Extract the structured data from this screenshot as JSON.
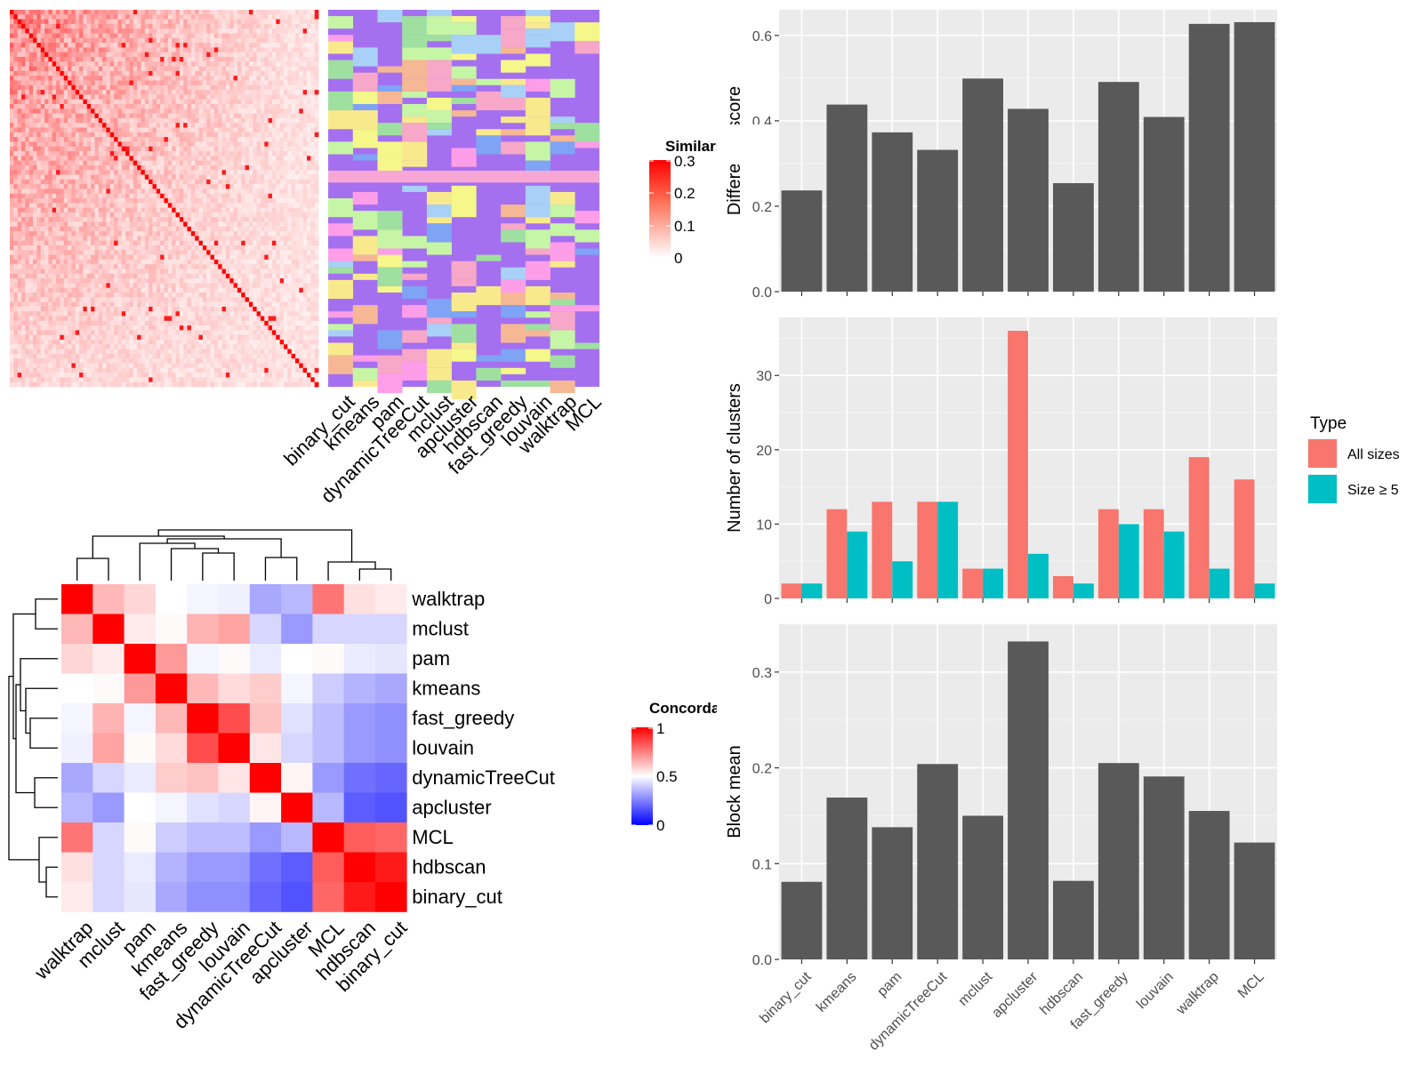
{
  "methods_order_bars": [
    "binary_cut",
    "kmeans",
    "pam",
    "dynamicTreeCut",
    "mclust",
    "apcluster",
    "hdbscan",
    "fast_greedy",
    "louvain",
    "walktrap",
    "MCL"
  ],
  "similarity_heatmap": {
    "legend_title": "Similarity",
    "legend_ticks": [
      "0",
      "0.1",
      "0.2",
      "0.3"
    ],
    "column_labels": [
      "binary_cut",
      "kmeans",
      "pam",
      "dynamicTreeCut",
      "mclust",
      "apcluster",
      "hdbscan",
      "fast_greedy",
      "louvain",
      "walktrap",
      "MCL"
    ]
  },
  "concordance_heatmap": {
    "legend_title": "Concordance",
    "legend_ticks": [
      "0",
      "0.5",
      "1"
    ],
    "labels": [
      "walktrap",
      "mclust",
      "pam",
      "kmeans",
      "fast_greedy",
      "louvain",
      "dynamicTreeCut",
      "apcluster",
      "MCL",
      "hdbscan",
      "binary_cut"
    ],
    "matrix": [
      [
        1.0,
        0.64,
        0.58,
        0.5,
        0.48,
        0.47,
        0.33,
        0.36,
        0.77,
        0.56,
        0.54
      ],
      [
        0.64,
        1.0,
        0.54,
        0.51,
        0.65,
        0.68,
        0.42,
        0.3,
        0.42,
        0.42,
        0.42
      ],
      [
        0.58,
        0.54,
        1.0,
        0.7,
        0.48,
        0.51,
        0.46,
        0.5,
        0.51,
        0.46,
        0.45
      ],
      [
        0.5,
        0.51,
        0.7,
        1.0,
        0.64,
        0.57,
        0.6,
        0.48,
        0.4,
        0.35,
        0.33
      ],
      [
        0.48,
        0.65,
        0.48,
        0.64,
        1.0,
        0.85,
        0.62,
        0.44,
        0.37,
        0.3,
        0.28
      ],
      [
        0.47,
        0.68,
        0.51,
        0.57,
        0.85,
        1.0,
        0.55,
        0.42,
        0.37,
        0.3,
        0.28
      ],
      [
        0.33,
        0.42,
        0.46,
        0.6,
        0.62,
        0.55,
        1.0,
        0.52,
        0.3,
        0.22,
        0.2
      ],
      [
        0.36,
        0.3,
        0.5,
        0.48,
        0.44,
        0.42,
        0.52,
        1.0,
        0.36,
        0.18,
        0.16
      ],
      [
        0.77,
        0.42,
        0.51,
        0.4,
        0.37,
        0.37,
        0.3,
        0.36,
        1.0,
        0.82,
        0.8
      ],
      [
        0.56,
        0.42,
        0.46,
        0.35,
        0.3,
        0.3,
        0.22,
        0.18,
        0.82,
        1.0,
        0.95
      ],
      [
        0.54,
        0.42,
        0.45,
        0.33,
        0.28,
        0.28,
        0.2,
        0.16,
        0.8,
        0.95,
        1.0
      ]
    ]
  },
  "chart_data": [
    {
      "type": "bar",
      "categories": [
        "binary_cut",
        "kmeans",
        "pam",
        "dynamicTreeCut",
        "mclust",
        "apcluster",
        "hdbscan",
        "fast_greedy",
        "louvain",
        "walktrap",
        "MCL"
      ],
      "values": [
        0.237,
        0.438,
        0.373,
        0.332,
        0.499,
        0.428,
        0.254,
        0.491,
        0.409,
        0.627,
        0.631
      ],
      "title": "",
      "xlabel": "",
      "ylabel": "Difference score",
      "ylim": [
        0,
        0.66
      ],
      "yticks": [
        0.0,
        0.2,
        0.4,
        0.6
      ],
      "ytick_labels": [
        "0.0",
        "0.2",
        "0.4",
        "0.6"
      ],
      "bar_color": "#595959",
      "grid": true
    },
    {
      "type": "bar",
      "categories": [
        "binary_cut",
        "kmeans",
        "pam",
        "dynamicTreeCut",
        "mclust",
        "apcluster",
        "hdbscan",
        "fast_greedy",
        "louvain",
        "walktrap",
        "MCL"
      ],
      "series": [
        {
          "name": "All sizes",
          "values": [
            2,
            12,
            13,
            13,
            4,
            36,
            3,
            12,
            12,
            19,
            16
          ],
          "color": "#F8766D"
        },
        {
          "name": "Size ≥ 5",
          "values": [
            2,
            9,
            5,
            13,
            4,
            6,
            2,
            10,
            9,
            4,
            2
          ],
          "color": "#00BFC4"
        }
      ],
      "legend_title": "Type",
      "legend_position": "right",
      "title": "",
      "xlabel": "",
      "ylabel": "Number of clusters",
      "ylim": [
        0,
        37.8
      ],
      "yticks": [
        0,
        10,
        20,
        30
      ],
      "ytick_labels": [
        "0",
        "10",
        "20",
        "30"
      ],
      "grid": true
    },
    {
      "type": "bar",
      "categories": [
        "binary_cut",
        "kmeans",
        "pam",
        "dynamicTreeCut",
        "mclust",
        "apcluster",
        "hdbscan",
        "fast_greedy",
        "louvain",
        "walktrap",
        "MCL"
      ],
      "values": [
        0.081,
        0.169,
        0.138,
        0.204,
        0.15,
        0.332,
        0.082,
        0.205,
        0.191,
        0.155,
        0.122
      ],
      "title": "",
      "xlabel": "",
      "ylabel": "Block mean",
      "ylim": [
        0,
        0.35
      ],
      "yticks": [
        0.0,
        0.1,
        0.2,
        0.3
      ],
      "ytick_labels": [
        "0.0",
        "0.1",
        "0.2",
        "0.3"
      ],
      "bar_color": "#595959",
      "grid": true
    }
  ]
}
